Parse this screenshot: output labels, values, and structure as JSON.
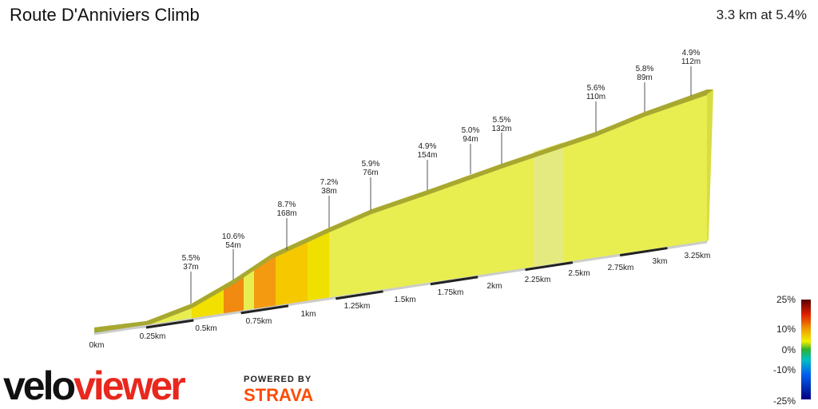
{
  "header": {
    "title": "Route D'Anniviers Climb",
    "summary": "3.3 km at 5.4%"
  },
  "distance_labels": [
    "0km",
    "0.25km",
    "0.5km",
    "0.75km",
    "1km",
    "1.25km",
    "1.5km",
    "1.75km",
    "2km",
    "2.25km",
    "2.5km",
    "2.75km",
    "3km",
    "3.25km"
  ],
  "segments": [
    {
      "grade": "5.5%",
      "length": "37m"
    },
    {
      "grade": "10.6%",
      "length": "54m"
    },
    {
      "grade": "8.7%",
      "length": "168m"
    },
    {
      "grade": "7.2%",
      "length": "38m"
    },
    {
      "grade": "5.9%",
      "length": "76m"
    },
    {
      "grade": "4.9%",
      "length": "154m"
    },
    {
      "grade": "5.0%",
      "length": "94m"
    },
    {
      "grade": "5.5%",
      "length": "132m"
    },
    {
      "grade": "5.6%",
      "length": "110m"
    },
    {
      "grade": "5.8%",
      "length": "89m"
    },
    {
      "grade": "4.9%",
      "length": "112m"
    }
  ],
  "legend": {
    "labels": [
      "25%",
      "10%",
      "0%",
      "-10%",
      "-25%"
    ]
  },
  "branding": {
    "velo": "velo",
    "viewer": "viewer",
    "powered_by": "POWERED BY",
    "strava": "STRAVA"
  }
}
